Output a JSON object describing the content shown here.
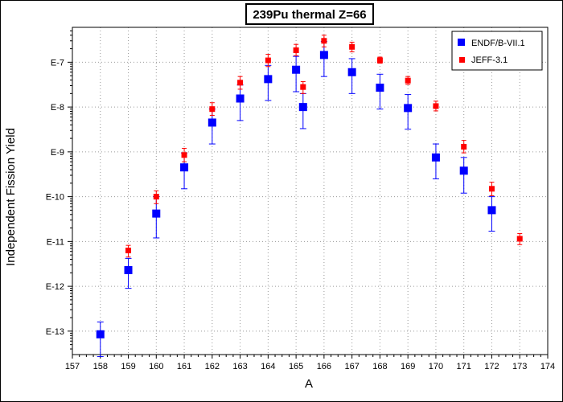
{
  "chart_data": {
    "type": "scatter",
    "title": "239Pu thermal Z=66",
    "xlabel": "A",
    "ylabel": "Independent Fission Yield",
    "xlim": [
      157,
      174
    ],
    "xticks": [
      "157",
      "158",
      "159",
      "160",
      "161",
      "162",
      "163",
      "164",
      "165",
      "166",
      "167",
      "168",
      "169",
      "170",
      "171",
      "172",
      "173",
      "174"
    ],
    "ylog": true,
    "ylim": [
      3e-14,
      6e-07
    ],
    "yticks": [
      {
        "value": 1e-13,
        "label": "E-13"
      },
      {
        "value": 1e-12,
        "label": "E-12"
      },
      {
        "value": 1e-11,
        "label": "E-11"
      },
      {
        "value": 1e-10,
        "label": "E-10"
      },
      {
        "value": 1e-09,
        "label": "E-9"
      },
      {
        "value": 1e-08,
        "label": "E-8"
      },
      {
        "value": 1e-07,
        "label": "E-7"
      }
    ],
    "grid": true,
    "legend_position": "top-right",
    "series": [
      {
        "name": "ENDF/B-VII.1",
        "color": "#0000ff",
        "marker": "square-large",
        "points": [
          {
            "x": 158,
            "y": 8.5e-14,
            "ylo": 2.7e-14,
            "yhi": 1.6e-13
          },
          {
            "x": 159,
            "y": 2.3e-12,
            "ylo": 9e-13,
            "yhi": 4.2e-12
          },
          {
            "x": 160,
            "y": 4.2e-11,
            "ylo": 1.2e-11,
            "yhi": 1e-10
          },
          {
            "x": 161,
            "y": 4.5e-10,
            "ylo": 1.5e-10,
            "yhi": 9.5e-10
          },
          {
            "x": 162,
            "y": 4.5e-09,
            "ylo": 1.5e-09,
            "yhi": 9e-09
          },
          {
            "x": 163,
            "y": 1.55e-08,
            "ylo": 5e-09,
            "yhi": 3.1e-08
          },
          {
            "x": 164,
            "y": 4.2e-08,
            "ylo": 1.4e-08,
            "yhi": 8.5e-08
          },
          {
            "x": 165,
            "y": 6.8e-08,
            "ylo": 2.2e-08,
            "yhi": 1.35e-07
          },
          {
            "x": 165.25,
            "y": 1e-08,
            "ylo": 3.3e-09,
            "yhi": 2e-08
          },
          {
            "x": 166,
            "y": 1.45e-07,
            "ylo": 4.8e-08,
            "yhi": 2.9e-07
          },
          {
            "x": 167,
            "y": 6e-08,
            "ylo": 2e-08,
            "yhi": 1.2e-07
          },
          {
            "x": 168,
            "y": 2.7e-08,
            "ylo": 9e-09,
            "yhi": 5.4e-08
          },
          {
            "x": 169,
            "y": 9.5e-09,
            "ylo": 3.2e-09,
            "yhi": 1.9e-08
          },
          {
            "x": 170,
            "y": 7.5e-10,
            "ylo": 2.5e-10,
            "yhi": 1.5e-09
          },
          {
            "x": 171,
            "y": 3.8e-10,
            "ylo": 1.2e-10,
            "yhi": 7.5e-10
          },
          {
            "x": 172,
            "y": 5e-11,
            "ylo": 1.7e-11,
            "yhi": 1e-10
          }
        ]
      },
      {
        "name": "JEFF-3.1",
        "color": "#ff0000",
        "marker": "square-small",
        "points": [
          {
            "x": 159,
            "y": 6.3e-12,
            "ylo": 4.5e-12,
            "yhi": 8.2e-12
          },
          {
            "x": 160,
            "y": 1e-10,
            "ylo": 7e-11,
            "yhi": 1.35e-10
          },
          {
            "x": 161,
            "y": 8.5e-10,
            "ylo": 6e-10,
            "yhi": 1.2e-09
          },
          {
            "x": 162,
            "y": 9e-09,
            "ylo": 6.5e-09,
            "yhi": 1.25e-08
          },
          {
            "x": 163,
            "y": 3.5e-08,
            "ylo": 2.5e-08,
            "yhi": 4.8e-08
          },
          {
            "x": 164,
            "y": 1.1e-07,
            "ylo": 8e-08,
            "yhi": 1.5e-07
          },
          {
            "x": 165,
            "y": 1.85e-07,
            "ylo": 1.4e-07,
            "yhi": 2.5e-07
          },
          {
            "x": 165.25,
            "y": 2.8e-08,
            "ylo": 2e-08,
            "yhi": 3.7e-08
          },
          {
            "x": 166,
            "y": 3e-07,
            "ylo": 2.2e-07,
            "yhi": 4e-07
          },
          {
            "x": 167,
            "y": 2.2e-07,
            "ylo": 1.7e-07,
            "yhi": 2.8e-07
          },
          {
            "x": 168,
            "y": 1.1e-07,
            "ylo": 9.5e-08,
            "yhi": 1.3e-07
          },
          {
            "x": 169,
            "y": 3.9e-08,
            "ylo": 3.2e-08,
            "yhi": 4.8e-08
          },
          {
            "x": 170,
            "y": 1.05e-08,
            "ylo": 8.2e-09,
            "yhi": 1.35e-08
          },
          {
            "x": 171,
            "y": 1.3e-09,
            "ylo": 9.5e-10,
            "yhi": 1.8e-09
          },
          {
            "x": 172,
            "y": 1.5e-10,
            "ylo": 1.05e-10,
            "yhi": 2.1e-10
          },
          {
            "x": 173,
            "y": 1.15e-11,
            "ylo": 8.5e-12,
            "yhi": 1.5e-11
          }
        ]
      }
    ]
  }
}
